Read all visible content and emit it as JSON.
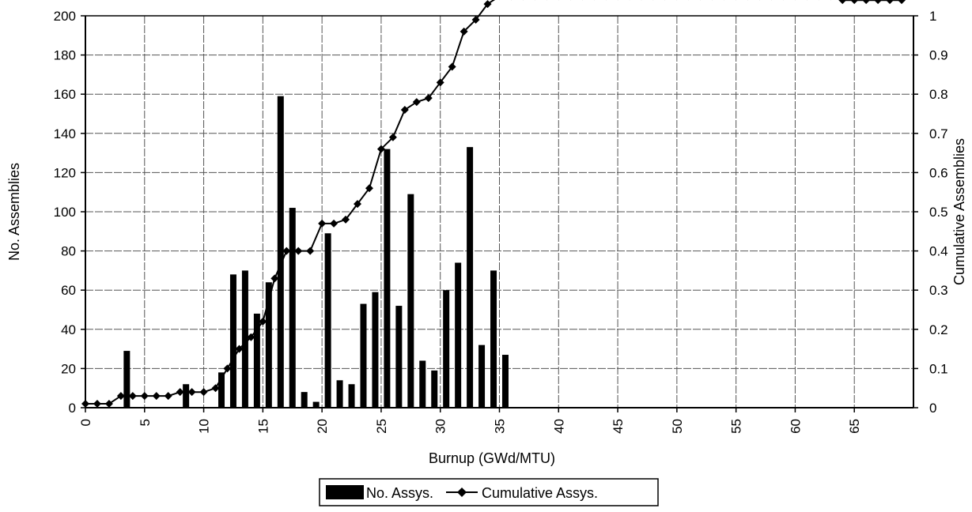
{
  "chart_data": {
    "type": "bar",
    "xlabel": "Burnup (GWd/MTU)",
    "ylabel": "No. Assemblies",
    "y2label": "Cumulative Assemblies",
    "xlim": [
      0,
      70
    ],
    "ylim": [
      0,
      200
    ],
    "y2lim": [
      0,
      1
    ],
    "x_ticks": [
      "0",
      "5",
      "10",
      "15",
      "20",
      "25",
      "30",
      "35",
      "40",
      "45",
      "50",
      "55",
      "60",
      "65"
    ],
    "y_ticks": [
      "0",
      "20",
      "40",
      "60",
      "80",
      "100",
      "120",
      "140",
      "160",
      "180",
      "200"
    ],
    "y2_ticks": [
      "0",
      "0.1",
      "0.2",
      "0.3",
      "0.4",
      "0.5",
      "0.6",
      "0.7",
      "0.8",
      "0.9",
      "1"
    ],
    "grid": true,
    "legend_position": "bottom",
    "series": [
      {
        "name": "No. Assys.",
        "type": "bar",
        "axis": "left",
        "color": "#000000",
        "x": [
          3.5,
          8.5,
          11.5,
          12.5,
          13.5,
          14.5,
          15.5,
          16.5,
          17.5,
          18.5,
          19.5,
          20.5,
          21.5,
          22.5,
          23.5,
          24.5,
          25.5,
          26.5,
          27.5,
          28.5,
          29.5,
          30.5,
          31.5,
          32.5,
          33.5,
          34.5,
          35.5
        ],
        "values": [
          29,
          12,
          18,
          68,
          70,
          48,
          64,
          159,
          102,
          8,
          3,
          89,
          14,
          12,
          53,
          59,
          132,
          52,
          109,
          24,
          19,
          60,
          74,
          133,
          32,
          70,
          27
        ]
      },
      {
        "name": "Cumulative Assys.",
        "type": "line",
        "axis": "right",
        "color": "#000000",
        "marker": "diamond",
        "x": [
          0,
          1,
          2,
          3,
          4,
          5,
          6,
          7,
          8,
          9,
          10,
          11,
          12,
          13,
          14,
          15,
          16,
          17,
          18,
          19,
          20,
          21,
          22,
          23,
          24,
          25,
          26,
          27,
          28,
          29,
          30,
          31,
          32,
          33,
          34,
          35,
          36,
          37,
          38,
          39,
          40,
          41,
          42,
          43,
          44,
          45,
          46,
          47,
          48,
          49,
          50,
          51,
          52,
          53,
          54,
          55,
          56,
          57,
          58,
          59,
          60,
          61,
          62,
          63,
          64,
          65,
          66,
          67,
          68,
          69
        ],
        "values": [
          0.01,
          0.01,
          0.01,
          0.03,
          0.03,
          0.03,
          0.03,
          0.03,
          0.04,
          0.04,
          0.04,
          0.05,
          0.1,
          0.15,
          0.18,
          0.22,
          0.33,
          0.4,
          0.4,
          0.4,
          0.47,
          0.47,
          0.48,
          0.52,
          0.56,
          0.66,
          0.69,
          0.76,
          0.78,
          0.79,
          0.83,
          0.87,
          0.96,
          0.99,
          1.03,
          1.05,
          1.05,
          1.05,
          1.05,
          1.05,
          1.05,
          1.05,
          1.05,
          1.05,
          1.05,
          1.05,
          1.05,
          1.05,
          1.05,
          1.05,
          1.05,
          1.05,
          1.05,
          1.05,
          1.05,
          1.05,
          1.05,
          1.05,
          1.05,
          1.05,
          1.05,
          1.05,
          1.05,
          1.05,
          1.04,
          1.04,
          1.04,
          1.04,
          1.04,
          1.04
        ]
      }
    ]
  }
}
